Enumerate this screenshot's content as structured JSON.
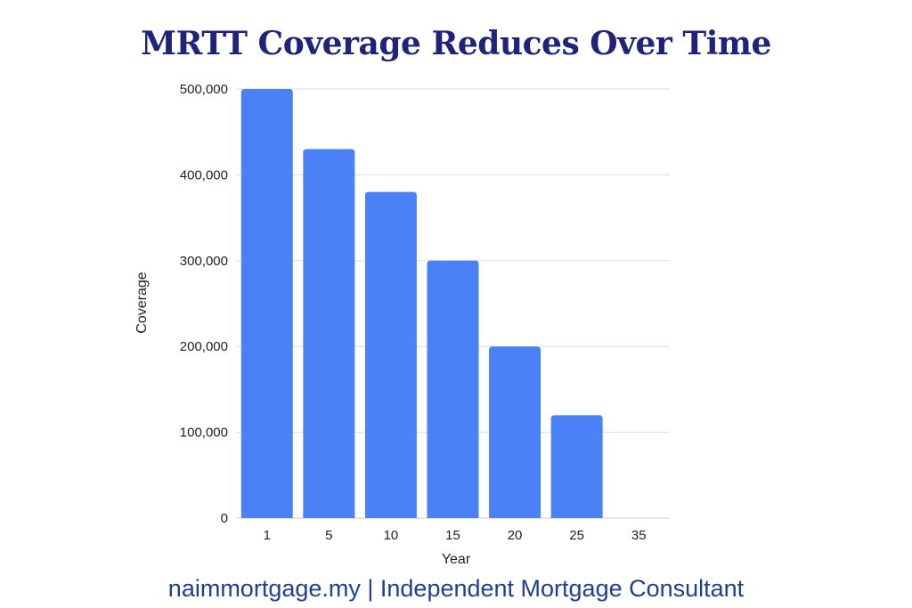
{
  "header": {
    "title": "MRTT Coverage Reduces Over Time"
  },
  "footer": {
    "text": "naimmortgage.my | Independent Mortgage Consultant"
  },
  "colors": {
    "bar": "#4a81f7",
    "title": "#1f237a",
    "footer": "#1f3f8f",
    "grid": "#dddddd"
  },
  "chart_data": {
    "type": "bar",
    "title": "MRTT Coverage Reduces Over Time",
    "xlabel": "Year",
    "ylabel": "Coverage",
    "categories": [
      "1",
      "5",
      "10",
      "15",
      "20",
      "25",
      "35"
    ],
    "values": [
      500000,
      430000,
      380000,
      300000,
      200000,
      120000,
      0
    ],
    "ylim": [
      0,
      500000
    ],
    "yticks": [
      "0",
      "100,000",
      "200,000",
      "300,000",
      "400,000",
      "500,000"
    ],
    "grid": true,
    "legend": "none"
  }
}
